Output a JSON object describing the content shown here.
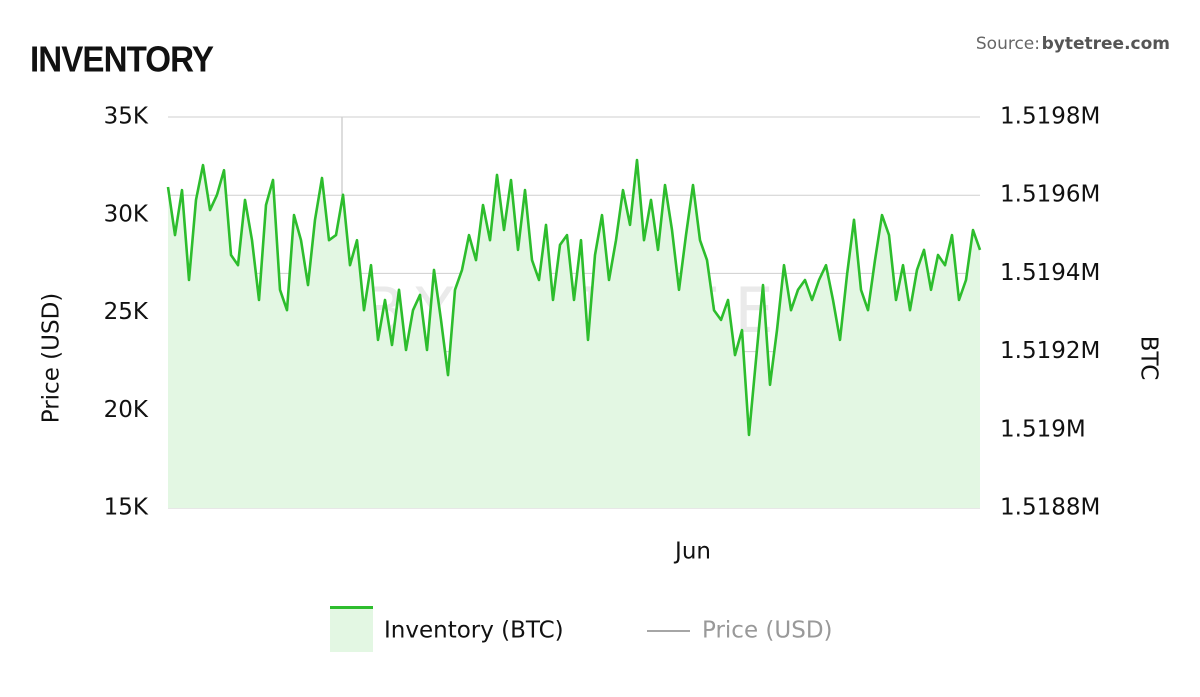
{
  "chart_data": {
    "type": "line",
    "title": "INVENTORY",
    "source_label": "Source:",
    "source": "bytetree.com",
    "watermark": "BYTETREE",
    "y_label": "Price (USD)",
    "y2_label": "BTC",
    "ylim": [
      15000,
      35000
    ],
    "yticks": [
      {
        "value": 15000,
        "label": "15K"
      },
      {
        "value": 20000,
        "label": "20K"
      },
      {
        "value": 25000,
        "label": "25K"
      },
      {
        "value": 30000,
        "label": "30K"
      },
      {
        "value": 35000,
        "label": "35K"
      }
    ],
    "y2lim": [
      1518800,
      1519800
    ],
    "y2ticks": [
      {
        "value": 1518800,
        "label": "1.5188M"
      },
      {
        "value": 1519000,
        "label": "1.519M"
      },
      {
        "value": 1519200,
        "label": "1.5192M"
      },
      {
        "value": 1519400,
        "label": "1.5194M"
      },
      {
        "value": 1519600,
        "label": "1.5196M"
      },
      {
        "value": 1519800,
        "label": "1.5198M"
      }
    ],
    "grid": true,
    "legend": "bottom",
    "categories": [
      null,
      null,
      null,
      null,
      null,
      null,
      null,
      null,
      null,
      null,
      null,
      null,
      null,
      null,
      null,
      null,
      null,
      null,
      null,
      null,
      null,
      null,
      null,
      null,
      null,
      null,
      null,
      null,
      null,
      null,
      null,
      null,
      null,
      null,
      null,
      null,
      null,
      null,
      null,
      null,
      null,
      null,
      null,
      null,
      null,
      null,
      null,
      null,
      null,
      null,
      null,
      null,
      null,
      null,
      null,
      null,
      null,
      null,
      null,
      null,
      null,
      null,
      null,
      null,
      null,
      null,
      null,
      null,
      null,
      null,
      null,
      null,
      null,
      null,
      null,
      "Jun",
      null,
      null,
      null,
      null,
      null,
      null,
      null,
      null,
      null,
      null,
      null,
      null,
      null,
      null,
      null,
      null,
      null,
      null,
      null,
      null,
      null,
      null,
      null,
      null,
      null,
      null,
      null,
      null,
      null,
      null,
      null,
      null,
      null,
      null,
      null,
      null,
      null,
      null,
      null,
      null,
      null
    ],
    "series": [
      {
        "name": "Inventory (BTC)",
        "color": "#2dbd2d",
        "area_color": "#e3f7e3",
        "axis": "y2",
        "visible": true,
        "values": [
          1519621,
          1519498,
          1519613,
          1519383,
          1519588,
          1519677,
          1519562,
          1519601,
          1519664,
          1519447,
          1519421,
          1519588,
          1519485,
          1519332,
          1519575,
          1519639,
          1519358,
          1519306,
          1519549,
          1519485,
          1519370,
          1519537,
          1519644,
          1519485,
          1519498,
          1519601,
          1519421,
          1519485,
          1519306,
          1519421,
          1519230,
          1519332,
          1519217,
          1519358,
          1519204,
          1519306,
          1519345,
          1519204,
          1519409,
          1519281,
          1519140,
          1519358,
          1519409,
          1519498,
          1519434,
          1519575,
          1519485,
          1519652,
          1519511,
          1519639,
          1519460,
          1519613,
          1519434,
          1519383,
          1519524,
          1519332,
          1519473,
          1519498,
          1519332,
          1519485,
          1519230,
          1519447,
          1519549,
          1519383,
          1519485,
          1519613,
          1519524,
          1519690,
          1519485,
          1519588,
          1519460,
          1519626,
          1519511,
          1519358,
          1519498,
          1519626,
          1519485,
          1519434,
          1519306,
          1519281,
          1519332,
          1519191,
          1519255,
          1518987,
          1519179,
          1519370,
          1519115,
          1519255,
          1519421,
          1519306,
          1519358,
          1519383,
          1519332,
          1519383,
          1519421,
          1519332,
          1519230,
          1519396,
          1519537,
          1519358,
          1519306,
          1519434,
          1519549,
          1519498,
          1519332,
          1519421,
          1519306,
          1519409,
          1519460,
          1519358,
          1519447,
          1519421,
          1519498,
          1519332,
          1519383,
          1519511,
          1519460
        ]
      },
      {
        "name": "Price (USD)",
        "color": "#888888",
        "axis": "y",
        "visible": false
      }
    ]
  }
}
